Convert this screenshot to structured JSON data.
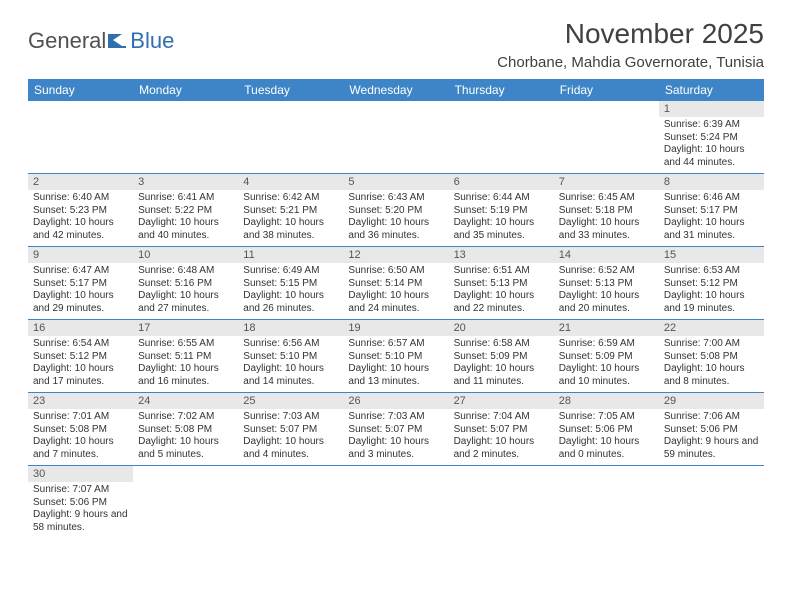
{
  "logo": {
    "part1": "General",
    "part2": "Blue"
  },
  "title": "November 2025",
  "location": "Chorbane, Mahdia Governorate, Tunisia",
  "colors": {
    "header_bg": "#3d85c6",
    "header_text": "#ffffff",
    "daynum_bg": "#e8e8e8",
    "rule": "#3d85c6",
    "body_text": "#333333"
  },
  "weekdays": [
    "Sunday",
    "Monday",
    "Tuesday",
    "Wednesday",
    "Thursday",
    "Friday",
    "Saturday"
  ],
  "weeks": [
    [
      {
        "n": null
      },
      {
        "n": null
      },
      {
        "n": null
      },
      {
        "n": null
      },
      {
        "n": null
      },
      {
        "n": null
      },
      {
        "n": "1",
        "sunrise": "Sunrise: 6:39 AM",
        "sunset": "Sunset: 5:24 PM",
        "daylight": "Daylight: 10 hours and 44 minutes."
      }
    ],
    [
      {
        "n": "2",
        "sunrise": "Sunrise: 6:40 AM",
        "sunset": "Sunset: 5:23 PM",
        "daylight": "Daylight: 10 hours and 42 minutes."
      },
      {
        "n": "3",
        "sunrise": "Sunrise: 6:41 AM",
        "sunset": "Sunset: 5:22 PM",
        "daylight": "Daylight: 10 hours and 40 minutes."
      },
      {
        "n": "4",
        "sunrise": "Sunrise: 6:42 AM",
        "sunset": "Sunset: 5:21 PM",
        "daylight": "Daylight: 10 hours and 38 minutes."
      },
      {
        "n": "5",
        "sunrise": "Sunrise: 6:43 AM",
        "sunset": "Sunset: 5:20 PM",
        "daylight": "Daylight: 10 hours and 36 minutes."
      },
      {
        "n": "6",
        "sunrise": "Sunrise: 6:44 AM",
        "sunset": "Sunset: 5:19 PM",
        "daylight": "Daylight: 10 hours and 35 minutes."
      },
      {
        "n": "7",
        "sunrise": "Sunrise: 6:45 AM",
        "sunset": "Sunset: 5:18 PM",
        "daylight": "Daylight: 10 hours and 33 minutes."
      },
      {
        "n": "8",
        "sunrise": "Sunrise: 6:46 AM",
        "sunset": "Sunset: 5:17 PM",
        "daylight": "Daylight: 10 hours and 31 minutes."
      }
    ],
    [
      {
        "n": "9",
        "sunrise": "Sunrise: 6:47 AM",
        "sunset": "Sunset: 5:17 PM",
        "daylight": "Daylight: 10 hours and 29 minutes."
      },
      {
        "n": "10",
        "sunrise": "Sunrise: 6:48 AM",
        "sunset": "Sunset: 5:16 PM",
        "daylight": "Daylight: 10 hours and 27 minutes."
      },
      {
        "n": "11",
        "sunrise": "Sunrise: 6:49 AM",
        "sunset": "Sunset: 5:15 PM",
        "daylight": "Daylight: 10 hours and 26 minutes."
      },
      {
        "n": "12",
        "sunrise": "Sunrise: 6:50 AM",
        "sunset": "Sunset: 5:14 PM",
        "daylight": "Daylight: 10 hours and 24 minutes."
      },
      {
        "n": "13",
        "sunrise": "Sunrise: 6:51 AM",
        "sunset": "Sunset: 5:13 PM",
        "daylight": "Daylight: 10 hours and 22 minutes."
      },
      {
        "n": "14",
        "sunrise": "Sunrise: 6:52 AM",
        "sunset": "Sunset: 5:13 PM",
        "daylight": "Daylight: 10 hours and 20 minutes."
      },
      {
        "n": "15",
        "sunrise": "Sunrise: 6:53 AM",
        "sunset": "Sunset: 5:12 PM",
        "daylight": "Daylight: 10 hours and 19 minutes."
      }
    ],
    [
      {
        "n": "16",
        "sunrise": "Sunrise: 6:54 AM",
        "sunset": "Sunset: 5:12 PM",
        "daylight": "Daylight: 10 hours and 17 minutes."
      },
      {
        "n": "17",
        "sunrise": "Sunrise: 6:55 AM",
        "sunset": "Sunset: 5:11 PM",
        "daylight": "Daylight: 10 hours and 16 minutes."
      },
      {
        "n": "18",
        "sunrise": "Sunrise: 6:56 AM",
        "sunset": "Sunset: 5:10 PM",
        "daylight": "Daylight: 10 hours and 14 minutes."
      },
      {
        "n": "19",
        "sunrise": "Sunrise: 6:57 AM",
        "sunset": "Sunset: 5:10 PM",
        "daylight": "Daylight: 10 hours and 13 minutes."
      },
      {
        "n": "20",
        "sunrise": "Sunrise: 6:58 AM",
        "sunset": "Sunset: 5:09 PM",
        "daylight": "Daylight: 10 hours and 11 minutes."
      },
      {
        "n": "21",
        "sunrise": "Sunrise: 6:59 AM",
        "sunset": "Sunset: 5:09 PM",
        "daylight": "Daylight: 10 hours and 10 minutes."
      },
      {
        "n": "22",
        "sunrise": "Sunrise: 7:00 AM",
        "sunset": "Sunset: 5:08 PM",
        "daylight": "Daylight: 10 hours and 8 minutes."
      }
    ],
    [
      {
        "n": "23",
        "sunrise": "Sunrise: 7:01 AM",
        "sunset": "Sunset: 5:08 PM",
        "daylight": "Daylight: 10 hours and 7 minutes."
      },
      {
        "n": "24",
        "sunrise": "Sunrise: 7:02 AM",
        "sunset": "Sunset: 5:08 PM",
        "daylight": "Daylight: 10 hours and 5 minutes."
      },
      {
        "n": "25",
        "sunrise": "Sunrise: 7:03 AM",
        "sunset": "Sunset: 5:07 PM",
        "daylight": "Daylight: 10 hours and 4 minutes."
      },
      {
        "n": "26",
        "sunrise": "Sunrise: 7:03 AM",
        "sunset": "Sunset: 5:07 PM",
        "daylight": "Daylight: 10 hours and 3 minutes."
      },
      {
        "n": "27",
        "sunrise": "Sunrise: 7:04 AM",
        "sunset": "Sunset: 5:07 PM",
        "daylight": "Daylight: 10 hours and 2 minutes."
      },
      {
        "n": "28",
        "sunrise": "Sunrise: 7:05 AM",
        "sunset": "Sunset: 5:06 PM",
        "daylight": "Daylight: 10 hours and 0 minutes."
      },
      {
        "n": "29",
        "sunrise": "Sunrise: 7:06 AM",
        "sunset": "Sunset: 5:06 PM",
        "daylight": "Daylight: 9 hours and 59 minutes."
      }
    ],
    [
      {
        "n": "30",
        "sunrise": "Sunrise: 7:07 AM",
        "sunset": "Sunset: 5:06 PM",
        "daylight": "Daylight: 9 hours and 58 minutes."
      },
      {
        "n": null
      },
      {
        "n": null
      },
      {
        "n": null
      },
      {
        "n": null
      },
      {
        "n": null
      },
      {
        "n": null
      }
    ]
  ]
}
